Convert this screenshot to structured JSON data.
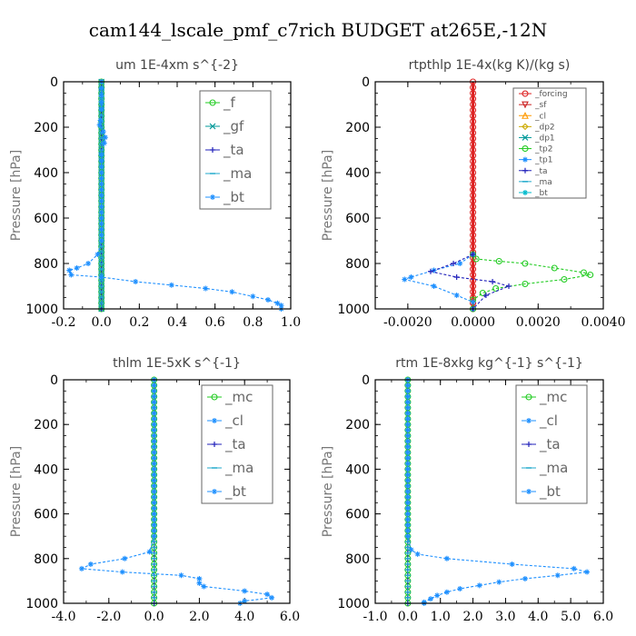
{
  "title": "cam144_lscale_pmf_c7rich  BUDGET at265E,-12N",
  "chart_data": [
    {
      "type": "line",
      "title": "um  1E-4xm s^{-2}",
      "ylabel": "Pressure [hPa]",
      "xlim": [
        -0.2,
        1.0
      ],
      "ylim": [
        1000,
        0
      ],
      "xticks": [
        "-0.2",
        "0.0",
        "0.2",
        "0.4",
        "0.6",
        "0.8",
        "1.0"
      ],
      "yticks": [
        "0",
        "200",
        "400",
        "600",
        "800",
        "1000"
      ],
      "legend": "top-right",
      "series": [
        {
          "name": "_f",
          "color": "#22cc22",
          "marker": "circle",
          "points": [
            [
              0,
              0
            ],
            [
              0,
              100
            ],
            [
              0,
              200
            ],
            [
              0,
              300
            ],
            [
              0,
              400
            ],
            [
              0,
              500
            ],
            [
              0,
              600
            ],
            [
              0,
              700
            ],
            [
              0,
              800
            ],
            [
              0,
              900
            ],
            [
              0,
              1000
            ]
          ]
        },
        {
          "name": "_gf",
          "color": "#009999",
          "marker": "x",
          "points": [
            [
              0,
              0
            ],
            [
              0,
              150
            ],
            [
              0,
              300
            ],
            [
              0,
              450
            ],
            [
              0,
              600
            ],
            [
              0,
              750
            ],
            [
              0,
              900
            ],
            [
              0,
              1000
            ]
          ]
        },
        {
          "name": "_ta",
          "color": "#2222bb",
          "marker": "plus",
          "points": [
            [
              0,
              0
            ],
            [
              0,
              100
            ],
            [
              0,
              200
            ],
            [
              0,
              300
            ],
            [
              0,
              400
            ],
            [
              0,
              500
            ],
            [
              0,
              600
            ],
            [
              0,
              700
            ],
            [
              0,
              800
            ],
            [
              0,
              900
            ],
            [
              0,
              1000
            ]
          ]
        },
        {
          "name": "_ma",
          "color": "#22aacc",
          "marker": "dash",
          "points": [
            [
              0,
              0
            ],
            [
              0,
              100
            ],
            [
              0,
              200
            ],
            [
              0,
              300
            ],
            [
              0,
              400
            ],
            [
              0,
              500
            ],
            [
              0,
              600
            ],
            [
              0,
              700
            ],
            [
              0,
              800
            ],
            [
              0,
              900
            ],
            [
              0,
              1000
            ]
          ]
        },
        {
          "name": "_bt",
          "color": "#1e90ff",
          "marker": "star",
          "points": [
            [
              0,
              0
            ],
            [
              0,
              60
            ],
            [
              0,
              120
            ],
            [
              -0.005,
              170
            ],
            [
              -0.01,
              190
            ],
            [
              0.01,
              220
            ],
            [
              0.02,
              245
            ],
            [
              0.015,
              270
            ],
            [
              0,
              320
            ],
            [
              0,
              400
            ],
            [
              0,
              500
            ],
            [
              0,
              600
            ],
            [
              0,
              700
            ],
            [
              -0.02,
              760
            ],
            [
              -0.07,
              800
            ],
            [
              -0.13,
              820
            ],
            [
              -0.17,
              830
            ],
            [
              -0.16,
              850
            ],
            [
              0,
              860
            ],
            [
              0.18,
              880
            ],
            [
              0.37,
              895
            ],
            [
              0.55,
              910
            ],
            [
              0.69,
              925
            ],
            [
              0.8,
              945
            ],
            [
              0.88,
              960
            ],
            [
              0.93,
              975
            ],
            [
              0.95,
              985
            ],
            [
              0.95,
              1000
            ]
          ]
        }
      ]
    },
    {
      "type": "line",
      "title": "rtpthlp  1E-4x(kg K)/(kg s)",
      "ylabel": "Pressure [hPa]",
      "xlim": [
        -0.003,
        0.004
      ],
      "ylim": [
        1000,
        0
      ],
      "xticks": [
        "-0.0020",
        "0.0000",
        "0.0020",
        "0.0040"
      ],
      "yticks": [
        "0",
        "200",
        "400",
        "600",
        "800",
        "1000"
      ],
      "legend": "top-right",
      "series": [
        {
          "name": "_forcing",
          "color": "#dd2222",
          "marker": "circle",
          "points": [
            [
              0,
              0
            ],
            [
              0,
              100
            ],
            [
              0,
              200
            ],
            [
              0,
              300
            ],
            [
              0,
              400
            ],
            [
              0,
              500
            ],
            [
              0,
              600
            ],
            [
              0,
              700
            ],
            [
              0,
              800
            ],
            [
              0,
              900
            ],
            [
              0,
              1000
            ]
          ]
        },
        {
          "name": "_sf",
          "color": "#cc2222",
          "marker": "triangle-down",
          "points": []
        },
        {
          "name": "_cl",
          "color": "#ff9900",
          "marker": "triangle",
          "points": []
        },
        {
          "name": "_dp2",
          "color": "#ccaa00",
          "marker": "diamond",
          "points": []
        },
        {
          "name": "_dp1",
          "color": "#009999",
          "marker": "x",
          "points": []
        },
        {
          "name": "_tp2",
          "color": "#22cc22",
          "marker": "circle",
          "points": [
            [
              0,
              760
            ],
            [
              0.0001,
              780
            ],
            [
              0.0008,
              790
            ],
            [
              0.0016,
              800
            ],
            [
              0.0025,
              820
            ],
            [
              0.0034,
              840
            ],
            [
              0.0036,
              850
            ],
            [
              0.0028,
              870
            ],
            [
              0.0016,
              890
            ],
            [
              0.0007,
              910
            ],
            [
              0.0003,
              930
            ],
            [
              0,
              960
            ],
            [
              0,
              1000
            ]
          ]
        },
        {
          "name": "_tp1",
          "color": "#1e90ff",
          "marker": "star",
          "points": [
            [
              0,
              760
            ],
            [
              -0.0004,
              800
            ],
            [
              -0.0012,
              830
            ],
            [
              -0.0019,
              860
            ],
            [
              -0.0021,
              870
            ],
            [
              -0.0012,
              900
            ],
            [
              -0.0005,
              940
            ],
            [
              0,
              970
            ],
            [
              0,
              1000
            ]
          ]
        },
        {
          "name": "_ta",
          "color": "#2222bb",
          "marker": "plus",
          "points": [
            [
              0,
              760
            ],
            [
              -0.0006,
              800
            ],
            [
              -0.0013,
              835
            ],
            [
              -0.0005,
              860
            ],
            [
              0.0006,
              880
            ],
            [
              0.0011,
              900
            ],
            [
              0.0004,
              940
            ],
            [
              0,
              1000
            ]
          ]
        },
        {
          "name": "_ma",
          "color": "#22aacc",
          "marker": "dash",
          "points": []
        },
        {
          "name": "_bt",
          "color": "#00bbcc",
          "marker": "star",
          "points": []
        }
      ]
    },
    {
      "type": "line",
      "title": "thlm  1E-5xK s^{-1}",
      "ylabel": "Pressure [hPa]",
      "xlim": [
        -4.0,
        6.0
      ],
      "ylim": [
        1000,
        0
      ],
      "xticks": [
        "-4.0",
        "-2.0",
        "0.0",
        "2.0",
        "4.0",
        "6.0"
      ],
      "yticks": [
        "0",
        "200",
        "400",
        "600",
        "800",
        "1000"
      ],
      "legend": "top-right",
      "series": [
        {
          "name": "_mc",
          "color": "#22cc22",
          "marker": "circle",
          "points": [
            [
              0,
              0
            ],
            [
              0,
              100
            ],
            [
              0,
              200
            ],
            [
              0,
              300
            ],
            [
              0,
              400
            ],
            [
              0,
              500
            ],
            [
              0,
              600
            ],
            [
              0,
              700
            ],
            [
              0,
              800
            ],
            [
              0,
              900
            ],
            [
              0,
              1000
            ]
          ]
        },
        {
          "name": "_cl",
          "color": "#1e90ff",
          "marker": "star",
          "points": []
        },
        {
          "name": "_ta",
          "color": "#2222bb",
          "marker": "plus",
          "points": [
            [
              0,
              0
            ],
            [
              0,
              100
            ],
            [
              0,
              200
            ],
            [
              0,
              300
            ],
            [
              0,
              400
            ],
            [
              0,
              500
            ],
            [
              0,
              600
            ],
            [
              0,
              700
            ],
            [
              0,
              800
            ],
            [
              0,
              900
            ],
            [
              0,
              1000
            ]
          ]
        },
        {
          "name": "_ma",
          "color": "#22aacc",
          "marker": "dash",
          "points": [
            [
              0,
              0
            ],
            [
              0,
              100
            ],
            [
              0,
              200
            ],
            [
              0,
              300
            ],
            [
              0,
              400
            ],
            [
              0,
              500
            ],
            [
              0,
              600
            ],
            [
              0,
              700
            ],
            [
              0,
              800
            ],
            [
              0,
              900
            ],
            [
              0,
              1000
            ]
          ]
        },
        {
          "name": "_bt",
          "color": "#1e90ff",
          "marker": "star",
          "points": [
            [
              0,
              0
            ],
            [
              0,
              100
            ],
            [
              0,
              200
            ],
            [
              0,
              300
            ],
            [
              0,
              400
            ],
            [
              0,
              500
            ],
            [
              0,
              600
            ],
            [
              0,
              700
            ],
            [
              -0.2,
              770
            ],
            [
              -1.3,
              800
            ],
            [
              -2.8,
              825
            ],
            [
              -3.2,
              845
            ],
            [
              -1.4,
              860
            ],
            [
              1.2,
              875
            ],
            [
              2.0,
              890
            ],
            [
              2.0,
              910
            ],
            [
              2.2,
              925
            ],
            [
              4.0,
              945
            ],
            [
              5.0,
              960
            ],
            [
              5.2,
              975
            ],
            [
              4.0,
              990
            ],
            [
              3.8,
              1000
            ]
          ]
        }
      ]
    },
    {
      "type": "line",
      "title": "rtm  1E-8xkg kg^{-1} s^{-1}",
      "ylabel": "Pressure [hPa]",
      "xlim": [
        -1.0,
        6.0
      ],
      "ylim": [
        1000,
        0
      ],
      "xticks": [
        "-1.0",
        "0.0",
        "1.0",
        "2.0",
        "3.0",
        "4.0",
        "5.0",
        "6.0"
      ],
      "yticks": [
        "0",
        "200",
        "400",
        "600",
        "800",
        "1000"
      ],
      "legend": "top-right",
      "series": [
        {
          "name": "_mc",
          "color": "#22cc22",
          "marker": "circle",
          "points": [
            [
              0,
              0
            ],
            [
              0,
              100
            ],
            [
              0,
              200
            ],
            [
              0,
              300
            ],
            [
              0,
              400
            ],
            [
              0,
              500
            ],
            [
              0,
              600
            ],
            [
              0,
              700
            ],
            [
              0,
              800
            ],
            [
              0,
              900
            ],
            [
              0,
              1000
            ]
          ]
        },
        {
          "name": "_cl",
          "color": "#1e90ff",
          "marker": "star",
          "points": []
        },
        {
          "name": "_ta",
          "color": "#2222bb",
          "marker": "plus",
          "points": [
            [
              0,
              0
            ],
            [
              0,
              100
            ],
            [
              0,
              200
            ],
            [
              0,
              300
            ],
            [
              0,
              400
            ],
            [
              0,
              500
            ],
            [
              0,
              600
            ],
            [
              0,
              700
            ],
            [
              0,
              800
            ],
            [
              0,
              900
            ],
            [
              0,
              1000
            ]
          ]
        },
        {
          "name": "_ma",
          "color": "#22aacc",
          "marker": "dash",
          "points": [
            [
              0,
              0
            ],
            [
              0,
              100
            ],
            [
              0,
              200
            ],
            [
              0,
              300
            ],
            [
              0,
              400
            ],
            [
              0,
              500
            ],
            [
              0,
              600
            ],
            [
              0,
              700
            ],
            [
              0,
              800
            ],
            [
              0,
              900
            ],
            [
              0,
              1000
            ]
          ]
        },
        {
          "name": "_bt",
          "color": "#1e90ff",
          "marker": "star",
          "points": [
            [
              0,
              0
            ],
            [
              0,
              100
            ],
            [
              0,
              200
            ],
            [
              0,
              300
            ],
            [
              0,
              400
            ],
            [
              0,
              500
            ],
            [
              0,
              600
            ],
            [
              0,
              700
            ],
            [
              0.1,
              760
            ],
            [
              0.3,
              780
            ],
            [
              1.2,
              800
            ],
            [
              3.2,
              825
            ],
            [
              5.1,
              845
            ],
            [
              5.5,
              860
            ],
            [
              4.6,
              875
            ],
            [
              3.6,
              890
            ],
            [
              2.8,
              905
            ],
            [
              2.2,
              920
            ],
            [
              1.6,
              935
            ],
            [
              1.2,
              950
            ],
            [
              0.9,
              965
            ],
            [
              0.7,
              980
            ],
            [
              0.5,
              995
            ],
            [
              0.5,
              1000
            ]
          ]
        }
      ]
    }
  ]
}
